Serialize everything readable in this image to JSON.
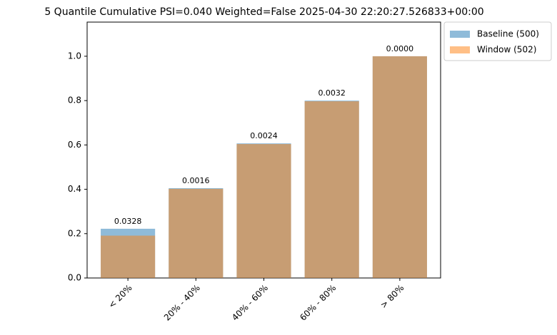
{
  "chart_data": {
    "type": "bar",
    "title": "5 Quantile Cumulative PSI=0.040 Weighted=False 2025-04-30 22:20:27.526833+00:00",
    "categories": [
      "< 20%",
      "20% - 40%",
      "40% - 60%",
      "60% - 80%",
      "> 80%"
    ],
    "series": [
      {
        "name": "Baseline (500)",
        "color": "#1f77b4",
        "values": [
          0.222,
          0.405,
          0.607,
          0.8,
          1.0
        ]
      },
      {
        "name": "Window (502)",
        "color": "#ff7f0e",
        "values": [
          0.191,
          0.402,
          0.604,
          0.797,
          1.0
        ]
      }
    ],
    "annotations": [
      "0.0328",
      "0.0016",
      "0.0024",
      "0.0032",
      "0.0000"
    ],
    "ylim": [
      0,
      1.154
    ],
    "yticks": [
      {
        "value": 0,
        "label": "0.0"
      },
      0.2,
      0.4,
      0.6,
      0.8,
      {
        "value": 1,
        "label": "1.0"
      }
    ],
    "legend": "upper right outside",
    "opacity": 0.5
  }
}
